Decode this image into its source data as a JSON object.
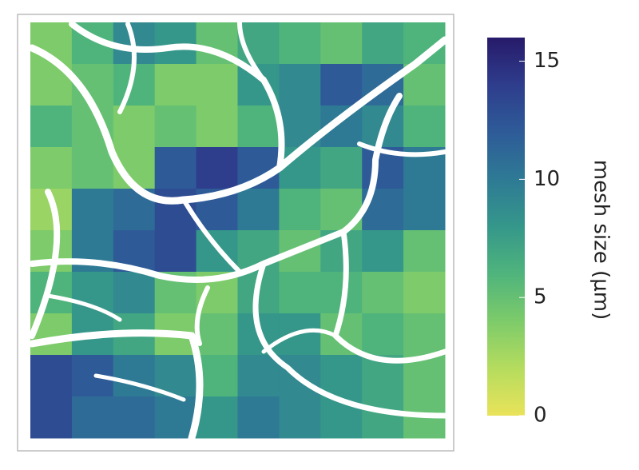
{
  "chart_data": {
    "type": "heatmap",
    "z": [
      [
        4,
        6,
        9,
        8,
        5,
        7,
        6,
        5,
        7,
        6
      ],
      [
        4,
        5,
        6,
        4,
        4,
        8,
        9,
        12,
        11,
        5
      ],
      [
        6,
        5,
        4,
        5,
        4,
        6,
        9,
        10,
        9,
        6
      ],
      [
        4,
        5,
        4,
        12,
        14,
        12,
        8,
        7,
        12,
        10
      ],
      [
        3,
        10,
        11,
        13,
        12,
        10,
        6,
        5,
        11,
        10
      ],
      [
        4,
        10,
        12,
        13,
        8,
        7,
        5,
        7,
        8,
        5
      ],
      [
        6,
        8,
        9,
        5,
        4,
        7,
        6,
        6,
        5,
        4
      ],
      [
        4,
        8,
        7,
        4,
        5,
        8,
        8,
        5,
        6,
        5
      ],
      [
        13,
        12,
        10,
        9,
        6,
        9,
        9,
        8,
        7,
        5
      ],
      [
        13,
        11,
        11,
        10,
        8,
        10,
        9,
        8,
        7,
        5
      ]
    ],
    "colorscale": [
      "#e9e35a",
      "#b5dc5e",
      "#7dcb6a",
      "#4fb47c",
      "#35978a",
      "#2e7a95",
      "#2e5b98",
      "#2e3d8c",
      "#271a6a"
    ],
    "clim": [
      0,
      16
    ],
    "colorbar_ticks": [
      0,
      5,
      10,
      15
    ],
    "colorbar_label": "mesh size (μm)"
  }
}
